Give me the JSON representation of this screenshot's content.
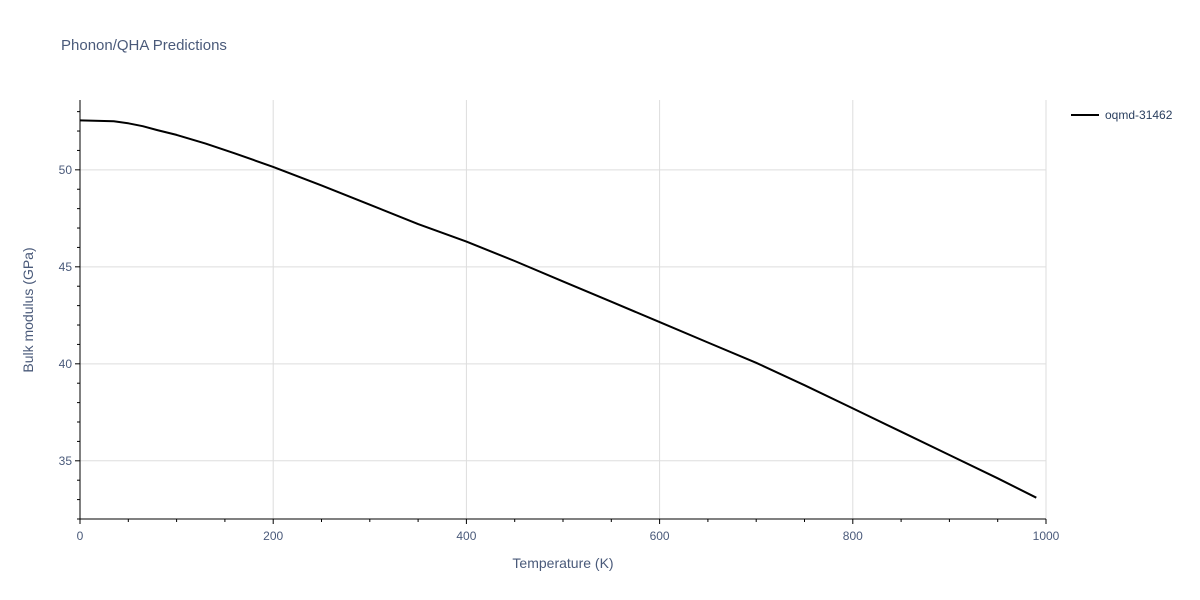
{
  "chart_data": {
    "type": "line",
    "title": "Phonon/QHA Predictions",
    "xlabel": "Temperature (K)",
    "ylabel": "Bulk modulus (GPa)",
    "xlim": [
      0,
      1000
    ],
    "ylim": [
      32,
      53.6
    ],
    "x_ticks": [
      0,
      200,
      400,
      600,
      800,
      1000
    ],
    "y_ticks": [
      35,
      40,
      45,
      50
    ],
    "grid": true,
    "legend_position": "top-right",
    "series": [
      {
        "name": "oqmd-31462",
        "color": "#000000",
        "x": [
          0,
          35,
          50,
          65,
          80,
          100,
          130,
          160,
          200,
          250,
          300,
          350,
          400,
          450,
          500,
          550,
          600,
          650,
          700,
          750,
          800,
          850,
          900,
          950,
          990
        ],
        "y": [
          52.55,
          52.5,
          52.4,
          52.25,
          52.05,
          51.8,
          51.35,
          50.85,
          50.15,
          49.2,
          48.2,
          47.2,
          46.3,
          45.3,
          44.25,
          43.2,
          42.15,
          41.1,
          40.05,
          38.9,
          37.7,
          36.5,
          35.3,
          34.1,
          33.1
        ]
      }
    ]
  }
}
